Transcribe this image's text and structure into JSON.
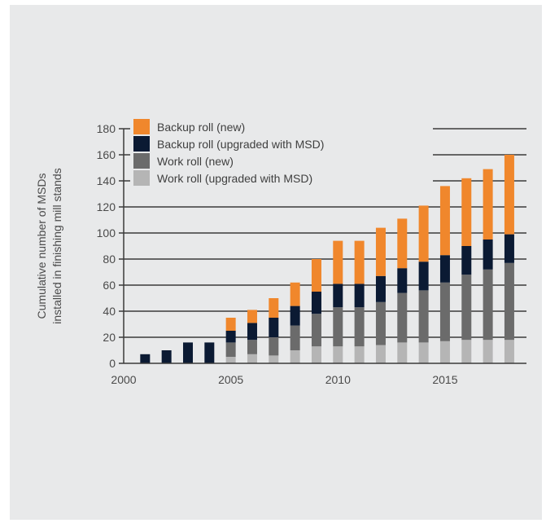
{
  "chart_data": {
    "type": "bar",
    "stacked": true,
    "x": [
      2001,
      2002,
      2003,
      2004,
      2005,
      2006,
      2007,
      2008,
      2009,
      2010,
      2011,
      2012,
      2013,
      2014,
      2015,
      2016,
      2017,
      2018
    ],
    "series": [
      {
        "name": "Work roll (upgraded with MSD)",
        "color": "#b5b5b5",
        "values": [
          0,
          0,
          0,
          0,
          5,
          7,
          6,
          10,
          13,
          13,
          13,
          14,
          16,
          16,
          17,
          18,
          18,
          18
        ]
      },
      {
        "name": "Work roll (new)",
        "color": "#6b6b6b",
        "values": [
          0,
          0,
          0,
          0,
          11,
          11,
          14,
          19,
          25,
          30,
          30,
          33,
          38,
          40,
          45,
          50,
          54,
          59
        ]
      },
      {
        "name": "Backup roll (upgraded with MSD)",
        "color": "#0b1a33",
        "values": [
          7,
          10,
          16,
          16,
          9,
          13,
          15,
          15,
          17,
          18,
          18,
          20,
          19,
          22,
          21,
          22,
          23,
          22
        ]
      },
      {
        "name": "Backup roll (new)",
        "color": "#f0872c",
        "values": [
          0,
          0,
          0,
          0,
          10,
          10,
          15,
          18,
          25,
          33,
          33,
          37,
          38,
          43,
          53,
          52,
          54,
          61
        ]
      }
    ],
    "legend_order": [
      3,
      2,
      1,
      0
    ],
    "xticks": [
      2000,
      2005,
      2010,
      2015
    ],
    "yticks": [
      0,
      20,
      40,
      60,
      80,
      100,
      120,
      140,
      160,
      180
    ],
    "xlim": [
      2000,
      2018.8
    ],
    "ylim": [
      0,
      180
    ],
    "title": "",
    "xlabel": "",
    "ylabel_lines": [
      "Cumulative number of MSDs",
      "installed in finishing mill stands"
    ],
    "grid": "horizontal",
    "legend_position": "top-left"
  }
}
